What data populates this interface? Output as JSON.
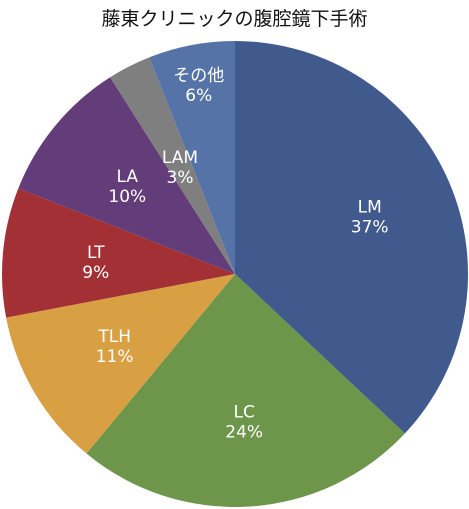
{
  "chart_data": {
    "type": "pie",
    "title": "藤東クリニックの腹腔鏡下手術",
    "start": "12 o'clock",
    "direction": "clockwise",
    "slices": [
      {
        "label": "LM",
        "value": 37,
        "value_label": "37%",
        "color": "#405a8e"
      },
      {
        "label": "LC",
        "value": 24,
        "value_label": "24%",
        "color": "#6e964b"
      },
      {
        "label": "TLH",
        "value": 11,
        "value_label": "11%",
        "color": "#d9a043"
      },
      {
        "label": "LT",
        "value": 9,
        "value_label": "9%",
        "color": "#a23034"
      },
      {
        "label": "LA",
        "value": 10,
        "value_label": "10%",
        "color": "#633d7a"
      },
      {
        "label": "LAM",
        "value": 3,
        "value_label": "3%",
        "color": "#7f7f7f"
      },
      {
        "label": "その他",
        "value": 6,
        "value_label": "6%",
        "color": "#5673a8"
      }
    ]
  }
}
